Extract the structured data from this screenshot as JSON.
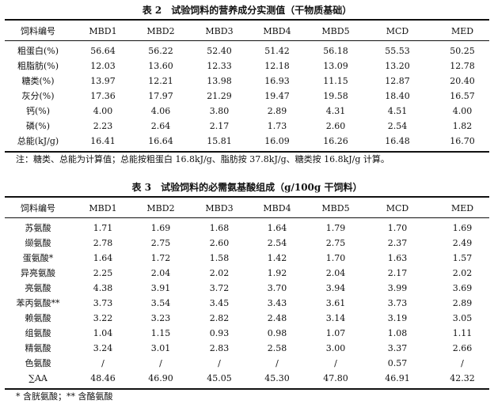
{
  "table2": {
    "title": "表 2　试验饲料的营养成分实测值（干物质基础）",
    "header": [
      "饲料编号",
      "MBD1",
      "MBD2",
      "MBD3",
      "MBD4",
      "MBD5",
      "MCD",
      "MED"
    ],
    "rows": [
      [
        "粗蛋白(%)",
        "56.64",
        "56.22",
        "52.40",
        "51.42",
        "56.18",
        "55.53",
        "50.25"
      ],
      [
        "粗脂肪(%)",
        "12.03",
        "13.60",
        "12.33",
        "12.18",
        "13.09",
        "13.20",
        "12.78"
      ],
      [
        "糖类(%)",
        "13.97",
        "12.21",
        "13.98",
        "16.93",
        "11.15",
        "12.87",
        "20.40"
      ],
      [
        "灰分(%)",
        "17.36",
        "17.97",
        "21.29",
        "19.47",
        "19.58",
        "18.40",
        "16.57"
      ],
      [
        "钙(%)",
        "4.00",
        "4.06",
        "3.80",
        "2.89",
        "4.31",
        "4.51",
        "4.00"
      ],
      [
        "磷(%)",
        "2.23",
        "2.64",
        "2.17",
        "1.73",
        "2.60",
        "2.54",
        "1.82"
      ],
      [
        "总能(kJ/g)",
        "16.41",
        "16.64",
        "15.81",
        "16.09",
        "16.26",
        "16.48",
        "16.70"
      ]
    ],
    "note": "注：糖类、总能为计算值；总能按粗蛋白 16.8kJ/g、脂肪按 37.8kJ/g、糖类按 16.8kJ/g 计算。"
  },
  "table3": {
    "title": "表 3　试验饲料的必需氨基酸组成（g/100g 干饲料）",
    "header": [
      "饲料编号",
      "MBD1",
      "MBD2",
      "MBD3",
      "MBD4",
      "MBD5",
      "MCD",
      "MED"
    ],
    "rows": [
      [
        "苏氨酸",
        "1.71",
        "1.69",
        "1.68",
        "1.64",
        "1.79",
        "1.70",
        "1.69"
      ],
      [
        "缬氨酸",
        "2.78",
        "2.75",
        "2.60",
        "2.54",
        "2.75",
        "2.37",
        "2.49"
      ],
      [
        "蛋氨酸*",
        "1.64",
        "1.72",
        "1.58",
        "1.42",
        "1.70",
        "1.63",
        "1.57"
      ],
      [
        "异亮氨酸",
        "2.25",
        "2.04",
        "2.02",
        "1.92",
        "2.04",
        "2.17",
        "2.02"
      ],
      [
        "亮氨酸",
        "4.38",
        "3.91",
        "3.72",
        "3.70",
        "3.94",
        "3.99",
        "3.69"
      ],
      [
        "苯丙氨酸**",
        "3.73",
        "3.54",
        "3.45",
        "3.43",
        "3.61",
        "3.73",
        "2.89"
      ],
      [
        "赖氨酸",
        "3.22",
        "3.23",
        "2.82",
        "2.48",
        "3.14",
        "3.19",
        "3.05"
      ],
      [
        "组氨酸",
        "1.04",
        "1.15",
        "0.93",
        "0.98",
        "1.07",
        "1.08",
        "1.11"
      ],
      [
        "精氨酸",
        "3.24",
        "3.01",
        "2.83",
        "2.58",
        "3.00",
        "3.37",
        "2.66"
      ],
      [
        "色氨酸",
        "/",
        "/",
        "/",
        "/",
        "/",
        "0.57",
        "/"
      ],
      [
        "∑AA",
        "48.46",
        "46.90",
        "45.05",
        "45.30",
        "47.80",
        "46.91",
        "42.32"
      ]
    ],
    "note": "* 含胱氨酸；** 含酪氨酸"
  }
}
